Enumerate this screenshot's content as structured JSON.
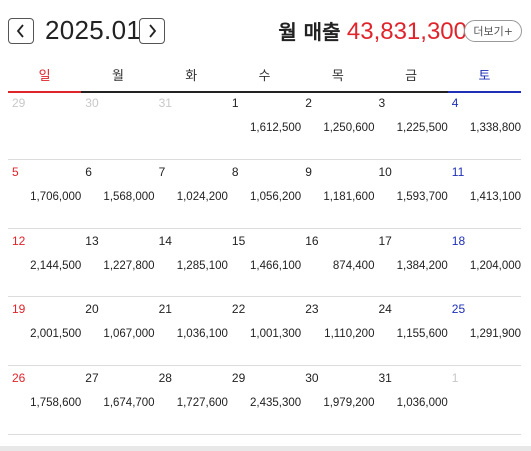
{
  "header": {
    "month": "2025.01",
    "sales_label": "월 매출",
    "sales_value": "43,831,300",
    "more_label": "더보기+"
  },
  "weekdays": [
    "일",
    "월",
    "화",
    "수",
    "목",
    "금",
    "토"
  ],
  "colors": {
    "sunday": "#e0242c",
    "saturday": "#1f2fb8",
    "accent": "#e0242c"
  },
  "icons": {
    "prev": "chevron-left-icon",
    "next": "chevron-right-icon"
  },
  "days": [
    {
      "day": "29",
      "amount": "",
      "other": true
    },
    {
      "day": "30",
      "amount": "",
      "other": true
    },
    {
      "day": "31",
      "amount": "",
      "other": true
    },
    {
      "day": "1",
      "amount": "1,612,500"
    },
    {
      "day": "2",
      "amount": "1,250,600"
    },
    {
      "day": "3",
      "amount": "1,225,500"
    },
    {
      "day": "4",
      "amount": "1,338,800"
    },
    {
      "day": "5",
      "amount": "1,706,000"
    },
    {
      "day": "6",
      "amount": "1,568,000"
    },
    {
      "day": "7",
      "amount": "1,024,200"
    },
    {
      "day": "8",
      "amount": "1,056,200"
    },
    {
      "day": "9",
      "amount": "1,181,600"
    },
    {
      "day": "10",
      "amount": "1,593,700"
    },
    {
      "day": "11",
      "amount": "1,413,100"
    },
    {
      "day": "12",
      "amount": "2,144,500"
    },
    {
      "day": "13",
      "amount": "1,227,800"
    },
    {
      "day": "14",
      "amount": "1,285,100"
    },
    {
      "day": "15",
      "amount": "1,466,100"
    },
    {
      "day": "16",
      "amount": "874,400"
    },
    {
      "day": "17",
      "amount": "1,384,200"
    },
    {
      "day": "18",
      "amount": "1,204,000"
    },
    {
      "day": "19",
      "amount": "2,001,500"
    },
    {
      "day": "20",
      "amount": "1,067,000"
    },
    {
      "day": "21",
      "amount": "1,036,100"
    },
    {
      "day": "22",
      "amount": "1,001,300"
    },
    {
      "day": "23",
      "amount": "1,110,200"
    },
    {
      "day": "24",
      "amount": "1,155,600"
    },
    {
      "day": "25",
      "amount": "1,291,900"
    },
    {
      "day": "26",
      "amount": "1,758,600"
    },
    {
      "day": "27",
      "amount": "1,674,700"
    },
    {
      "day": "28",
      "amount": "1,727,600"
    },
    {
      "day": "29",
      "amount": "2,435,300"
    },
    {
      "day": "30",
      "amount": "1,979,200"
    },
    {
      "day": "31",
      "amount": "1,036,000"
    },
    {
      "day": "1",
      "amount": "",
      "other": true
    }
  ]
}
